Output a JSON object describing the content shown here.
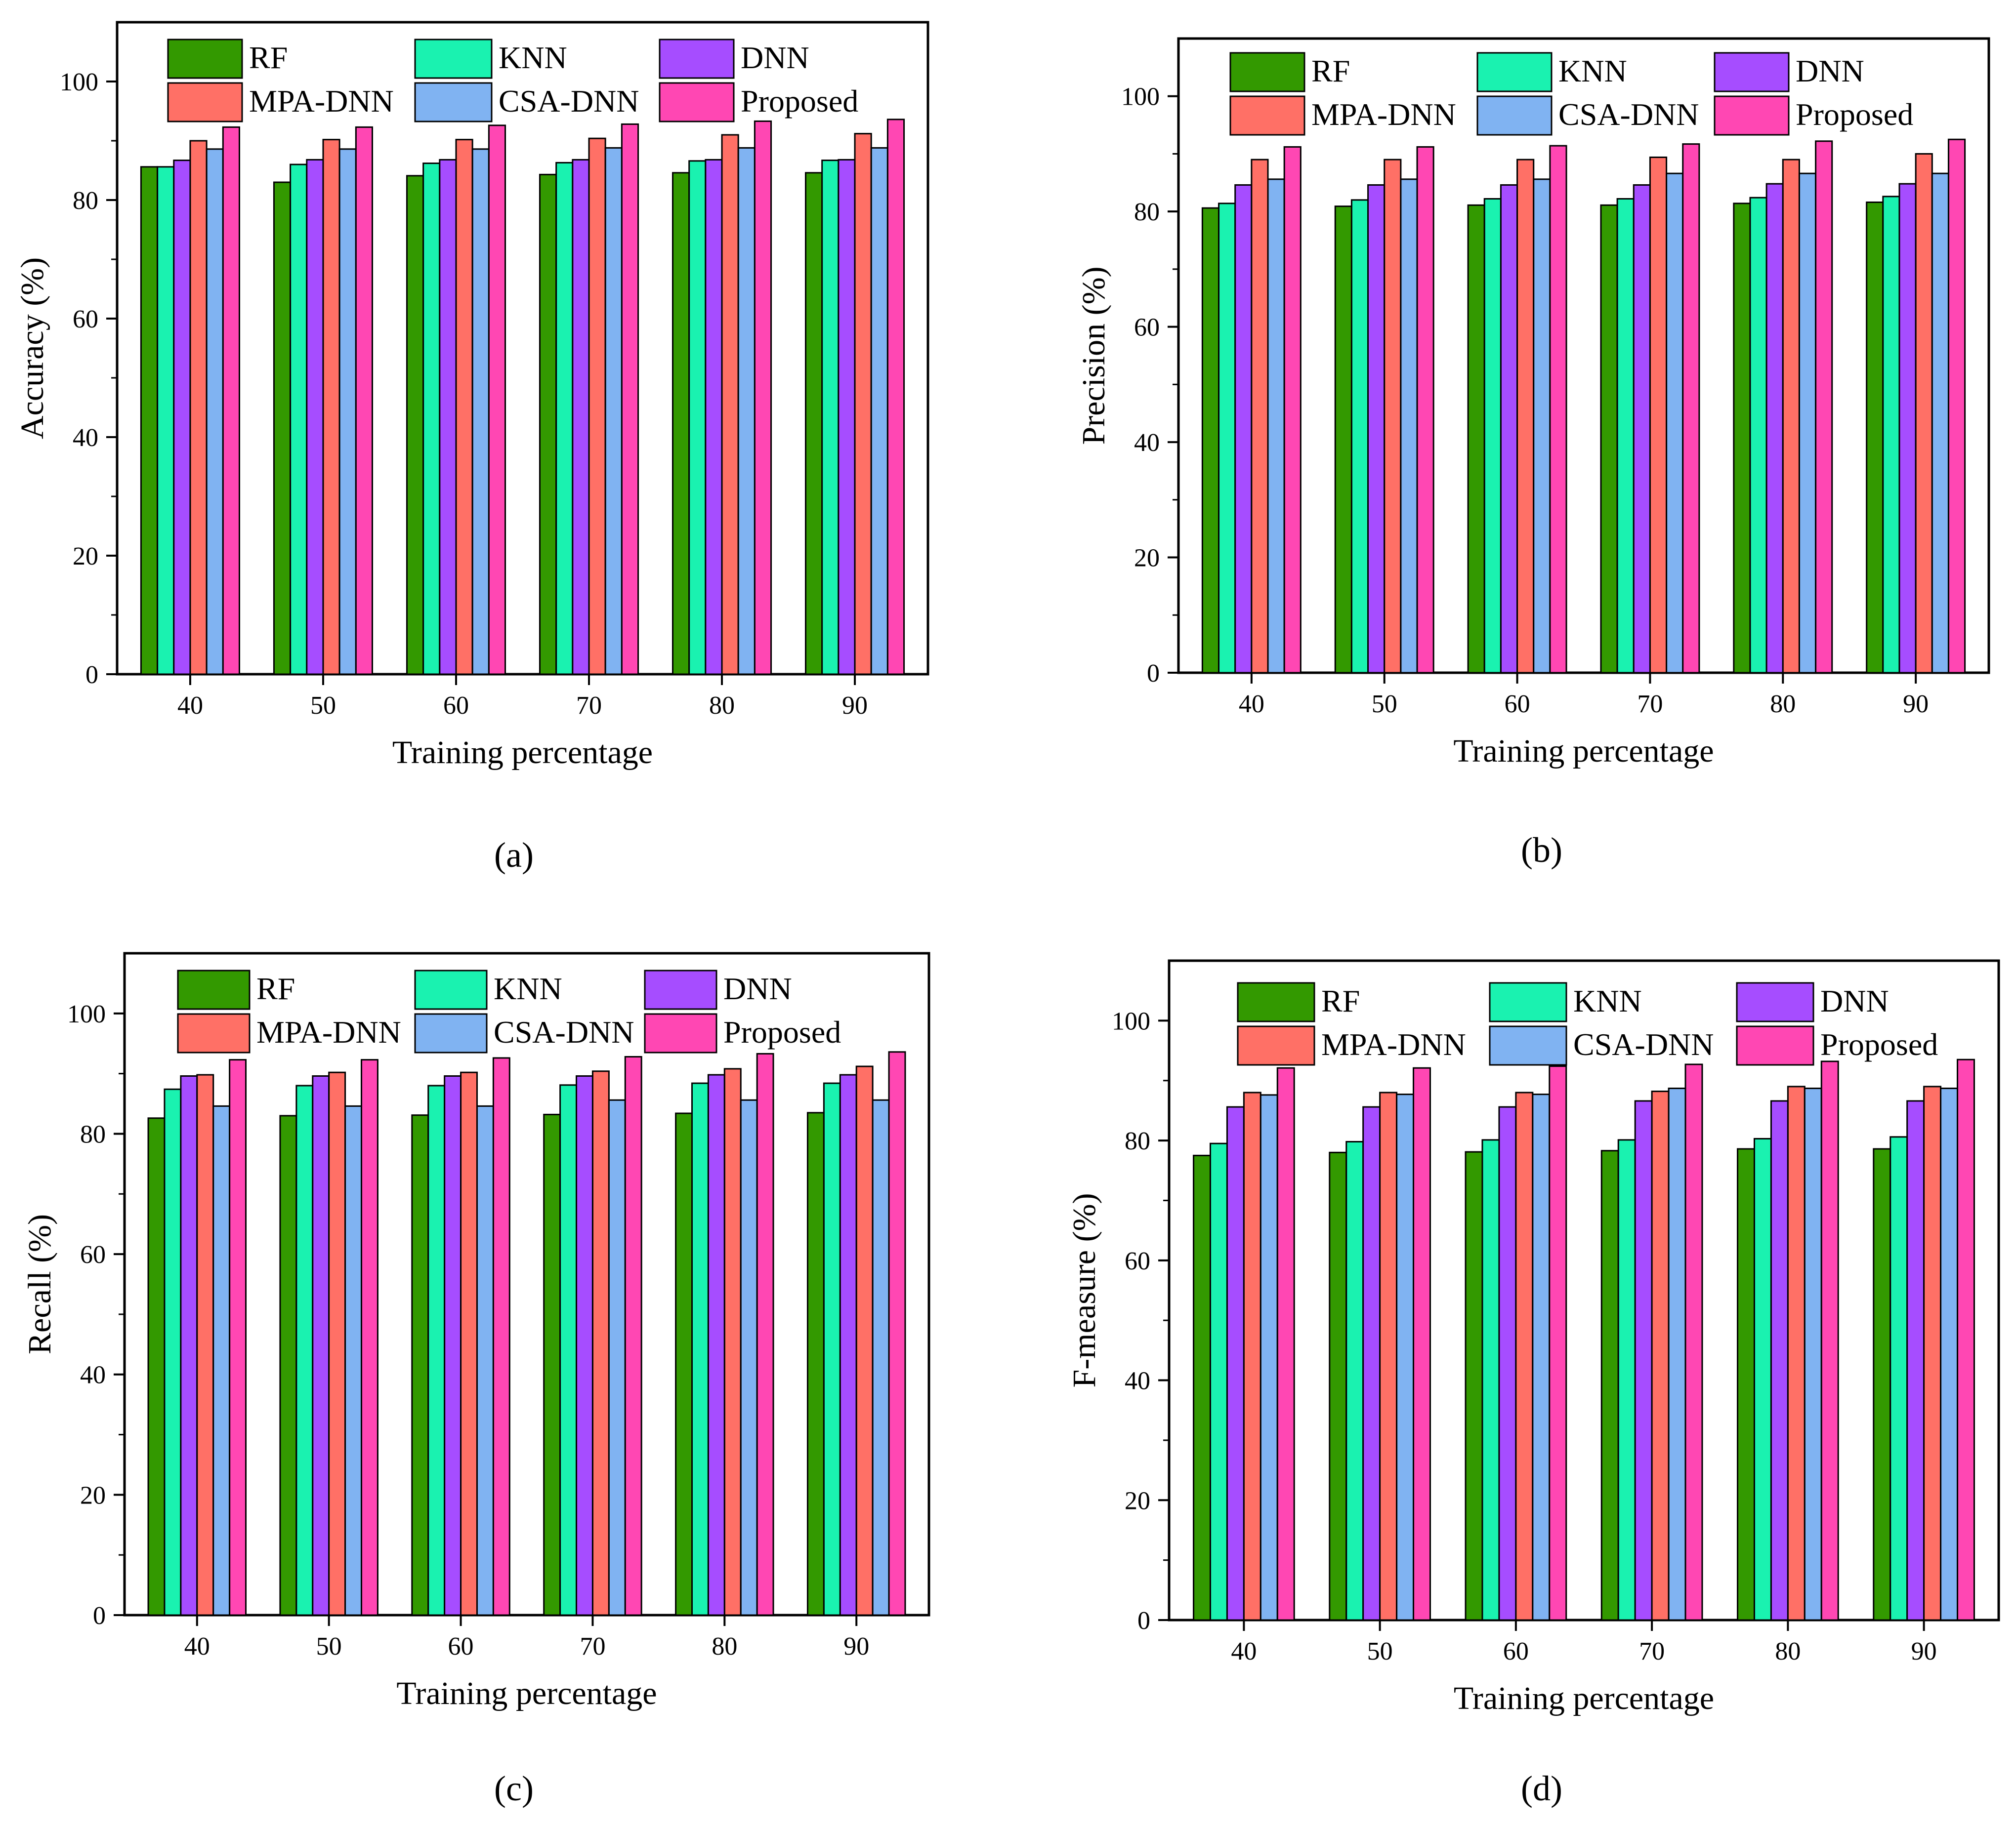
{
  "legend": {
    "series": [
      "RF",
      "KNN",
      "DNN",
      "MPA-DNN",
      "CSA-DNN",
      "Proposed"
    ],
    "colors": [
      "#339900",
      "#1af2b0",
      "#a64dff",
      "#ff7066",
      "#80b3f2",
      "#ff47b3"
    ]
  },
  "chart_data": [
    {
      "type": "bar",
      "panel_label": "(a)",
      "xlabel": "Training percentage",
      "ylabel": "Accuracy (%)",
      "categories": [
        "40",
        "50",
        "60",
        "70",
        "80",
        "90"
      ],
      "ylim": [
        0,
        110
      ],
      "yticks": [
        0,
        20,
        40,
        60,
        80,
        100
      ],
      "series": [
        {
          "name": "RF",
          "values": [
            85.6,
            83.0,
            84.1,
            84.3,
            84.6,
            84.6
          ]
        },
        {
          "name": "KNN",
          "values": [
            85.6,
            86.0,
            86.2,
            86.3,
            86.6,
            86.7
          ]
        },
        {
          "name": "DNN",
          "values": [
            86.7,
            86.8,
            86.8,
            86.8,
            86.8,
            86.8
          ]
        },
        {
          "name": "MPA-DNN",
          "values": [
            90.0,
            90.2,
            90.2,
            90.4,
            91.0,
            91.2
          ]
        },
        {
          "name": "CSA-DNN",
          "values": [
            88.6,
            88.6,
            88.6,
            88.8,
            88.8,
            88.8
          ]
        },
        {
          "name": "Proposed",
          "values": [
            92.3,
            92.3,
            92.6,
            92.8,
            93.3,
            93.6
          ]
        }
      ]
    },
    {
      "type": "bar",
      "panel_label": "(b)",
      "xlabel": "Training percentage",
      "ylabel": "Precision (%)",
      "categories": [
        "40",
        "50",
        "60",
        "70",
        "80",
        "90"
      ],
      "ylim": [
        0,
        110
      ],
      "yticks": [
        0,
        20,
        40,
        60,
        80,
        100
      ],
      "series": [
        {
          "name": "RF",
          "values": [
            80.6,
            80.9,
            81.1,
            81.1,
            81.4,
            81.6
          ]
        },
        {
          "name": "KNN",
          "values": [
            81.4,
            82.0,
            82.2,
            82.2,
            82.4,
            82.6
          ]
        },
        {
          "name": "DNN",
          "values": [
            84.6,
            84.6,
            84.6,
            84.6,
            84.8,
            84.8
          ]
        },
        {
          "name": "MPA-DNN",
          "values": [
            89.0,
            89.0,
            89.0,
            89.4,
            89.0,
            90.0
          ]
        },
        {
          "name": "CSA-DNN",
          "values": [
            85.6,
            85.6,
            85.6,
            86.6,
            86.6,
            86.6
          ]
        },
        {
          "name": "Proposed",
          "values": [
            91.2,
            91.2,
            91.4,
            91.7,
            92.2,
            92.5
          ]
        }
      ]
    },
    {
      "type": "bar",
      "panel_label": "(c)",
      "xlabel": "Training percentage",
      "ylabel": "Recall (%)",
      "categories": [
        "40",
        "50",
        "60",
        "70",
        "80",
        "90"
      ],
      "ylim": [
        0,
        110
      ],
      "yticks": [
        0,
        20,
        40,
        60,
        80,
        100
      ],
      "series": [
        {
          "name": "RF",
          "values": [
            82.6,
            83.0,
            83.1,
            83.2,
            83.4,
            83.5
          ]
        },
        {
          "name": "KNN",
          "values": [
            87.4,
            88.0,
            88.0,
            88.1,
            88.4,
            88.4
          ]
        },
        {
          "name": "DNN",
          "values": [
            89.6,
            89.6,
            89.6,
            89.6,
            89.8,
            89.8
          ]
        },
        {
          "name": "MPA-DNN",
          "values": [
            89.8,
            90.2,
            90.2,
            90.4,
            90.8,
            91.2
          ]
        },
        {
          "name": "CSA-DNN",
          "values": [
            84.6,
            84.6,
            84.6,
            85.6,
            85.6,
            85.6
          ]
        },
        {
          "name": "Proposed",
          "values": [
            92.3,
            92.3,
            92.6,
            92.8,
            93.3,
            93.6
          ]
        }
      ]
    },
    {
      "type": "bar",
      "panel_label": "(d)",
      "xlabel": "Training percentage",
      "ylabel": "F-measure (%)",
      "categories": [
        "40",
        "50",
        "60",
        "70",
        "80",
        "90"
      ],
      "ylim": [
        0,
        110
      ],
      "yticks": [
        0,
        20,
        40,
        60,
        80,
        100
      ],
      "series": [
        {
          "name": "RF",
          "values": [
            77.5,
            78.0,
            78.1,
            78.3,
            78.6,
            78.6
          ]
        },
        {
          "name": "KNN",
          "values": [
            79.5,
            79.8,
            80.1,
            80.1,
            80.3,
            80.6
          ]
        },
        {
          "name": "DNN",
          "values": [
            85.6,
            85.6,
            85.6,
            86.6,
            86.6,
            86.6
          ]
        },
        {
          "name": "MPA-DNN",
          "values": [
            88.0,
            88.0,
            88.0,
            88.2,
            89.0,
            89.0
          ]
        },
        {
          "name": "CSA-DNN",
          "values": [
            87.6,
            87.7,
            87.7,
            88.7,
            88.7,
            88.7
          ]
        },
        {
          "name": "Proposed",
          "values": [
            92.1,
            92.1,
            92.4,
            92.7,
            93.2,
            93.5
          ]
        }
      ]
    }
  ]
}
